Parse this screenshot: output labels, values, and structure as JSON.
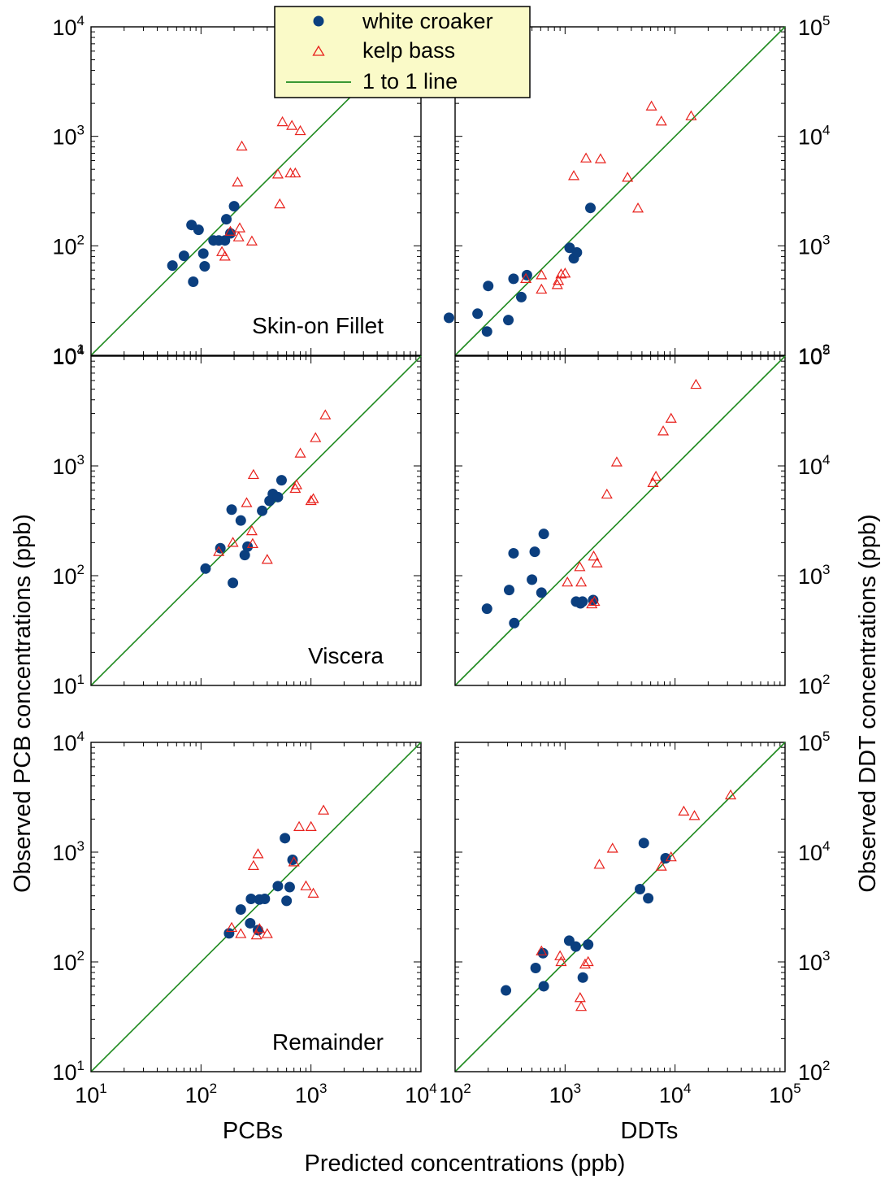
{
  "figure": {
    "x_label_main": "Predicted concentrations (ppb)",
    "x_label_left": "PCBs",
    "x_label_right": "DDTs",
    "y_label_left": "Observed PCB concentrations (ppb)",
    "y_label_right": "Observed DDT concentrations (ppb)",
    "legend": [
      {
        "label": "white croaker",
        "marker": "filled-circle",
        "color": "#0b3f7f"
      },
      {
        "label": "kelp bass",
        "marker": "open-triangle",
        "color": "#e8211c"
      },
      {
        "label": "1 to 1 line",
        "marker": "line",
        "color": "#1f8a1f"
      }
    ],
    "colors": {
      "white_croaker": "#0b3f7f",
      "kelp_bass": "#e8211c",
      "one_to_one": "#1f8a1f",
      "legend_background": "#fafac8"
    }
  },
  "chart_data": [
    {
      "type": "scatter",
      "panel": "pcb-skin-on-fillet",
      "label": "Skin-on Fillet",
      "x_scale": "log",
      "y_scale": "log",
      "xlim": [
        10,
        10000
      ],
      "ylim": [
        10,
        10000
      ],
      "x_ticks": [
        "10^1",
        "10^2",
        "10^3",
        "10^4"
      ],
      "y_ticks": [
        "10^1",
        "10^2",
        "10^3",
        "10^4"
      ],
      "x_tick_labels_visible": false,
      "series": [
        {
          "name": "white croaker",
          "points": [
            [
              55,
              66
            ],
            [
              70,
              81
            ],
            [
              85,
              47
            ],
            [
              82,
              155
            ],
            [
              95,
              140
            ],
            [
              105,
              85
            ],
            [
              108,
              65
            ],
            [
              130,
              112
            ],
            [
              145,
              112
            ],
            [
              165,
              112
            ],
            [
              170,
              175
            ],
            [
              185,
              130
            ],
            [
              200,
              230
            ]
          ]
        },
        {
          "name": "kelp bass",
          "points": [
            [
              155,
              88
            ],
            [
              165,
              80
            ],
            [
              185,
              135
            ],
            [
              215,
              380
            ],
            [
              220,
              120
            ],
            [
              225,
              145
            ],
            [
              235,
              810
            ],
            [
              290,
              110
            ],
            [
              500,
              450
            ],
            [
              520,
              240
            ],
            [
              550,
              1350
            ],
            [
              650,
              460
            ],
            [
              670,
              1250
            ],
            [
              720,
              460
            ],
            [
              800,
              1120
            ]
          ]
        }
      ]
    },
    {
      "type": "scatter",
      "panel": "ddt-skin-on-fillet",
      "x_scale": "log",
      "y_scale": "log",
      "xlim": [
        100,
        100000
      ],
      "ylim": [
        100,
        100000
      ],
      "x_ticks": [
        "10^2",
        "10^3",
        "10^4",
        "10^5"
      ],
      "y_ticks": [
        "10^2",
        "10^3",
        "10^4",
        "10^5"
      ],
      "x_tick_labels_visible": false,
      "series": [
        {
          "name": "white croaker",
          "points": [
            [
              88,
              220
            ],
            [
              160,
              240
            ],
            [
              195,
              165
            ],
            [
              200,
              430
            ],
            [
              305,
              210
            ],
            [
              340,
              500
            ],
            [
              400,
              340
            ],
            [
              450,
              540
            ],
            [
              1100,
              960
            ],
            [
              1200,
              770
            ],
            [
              1280,
              870
            ],
            [
              1700,
              2220
            ]
          ]
        },
        {
          "name": "kelp bass",
          "points": [
            [
              440,
              500
            ],
            [
              610,
              540
            ],
            [
              610,
              400
            ],
            [
              850,
              440
            ],
            [
              870,
              480
            ],
            [
              920,
              550
            ],
            [
              1000,
              560
            ],
            [
              1200,
              4350
            ],
            [
              1550,
              6300
            ],
            [
              2100,
              6200
            ],
            [
              3700,
              4200
            ],
            [
              4600,
              2200
            ],
            [
              6100,
              18800
            ],
            [
              7500,
              13700
            ],
            [
              14000,
              15300
            ]
          ]
        }
      ]
    },
    {
      "type": "scatter",
      "panel": "pcb-viscera",
      "label": "Viscera",
      "x_scale": "log",
      "y_scale": "log",
      "xlim": [
        10,
        10000
      ],
      "ylim": [
        10,
        10000
      ],
      "x_ticks": [
        "10^1",
        "10^2",
        "10^3",
        "10^4"
      ],
      "y_ticks": [
        "10^1",
        "10^2",
        "10^3",
        "10^4"
      ],
      "x_tick_labels_visible": false,
      "series": [
        {
          "name": "white croaker",
          "points": [
            [
              110,
              116
            ],
            [
              150,
              178
            ],
            [
              190,
              400
            ],
            [
              195,
              86
            ],
            [
              230,
              318
            ],
            [
              250,
              154
            ],
            [
              265,
              184
            ],
            [
              360,
              390
            ],
            [
              420,
              480
            ],
            [
              450,
              555
            ],
            [
              500,
              520
            ],
            [
              540,
              740
            ]
          ]
        },
        {
          "name": "kelp bass",
          "points": [
            [
              145,
              165
            ],
            [
              195,
              200
            ],
            [
              260,
              460
            ],
            [
              290,
              255
            ],
            [
              295,
              195
            ],
            [
              300,
              830
            ],
            [
              400,
              140
            ],
            [
              720,
              620
            ],
            [
              740,
              670
            ],
            [
              800,
              1300
            ],
            [
              1000,
              480
            ],
            [
              1050,
              500
            ],
            [
              1100,
              1800
            ],
            [
              1350,
              2900
            ]
          ]
        }
      ]
    },
    {
      "type": "scatter",
      "panel": "ddt-viscera",
      "x_scale": "log",
      "y_scale": "log",
      "xlim": [
        100,
        100000
      ],
      "ylim": [
        100,
        100000
      ],
      "x_ticks": [
        "10^2",
        "10^3",
        "10^4",
        "10^5"
      ],
      "y_ticks": [
        "10^2",
        "10^3",
        "10^4",
        "10^5"
      ],
      "x_tick_labels_visible": false,
      "series": [
        {
          "name": "white croaker",
          "points": [
            [
              195,
              500
            ],
            [
              310,
              740
            ],
            [
              340,
              1600
            ],
            [
              345,
              370
            ],
            [
              500,
              920
            ],
            [
              530,
              1650
            ],
            [
              610,
              700
            ],
            [
              640,
              2400
            ],
            [
              1260,
              580
            ],
            [
              1380,
              560
            ],
            [
              1440,
              580
            ],
            [
              1800,
              600
            ]
          ]
        },
        {
          "name": "kelp bass",
          "points": [
            [
              1050,
              870
            ],
            [
              1360,
              1200
            ],
            [
              1400,
              870
            ],
            [
              1750,
              550
            ],
            [
              1820,
              1500
            ],
            [
              1850,
              580
            ],
            [
              1950,
              1300
            ],
            [
              2400,
              5500
            ],
            [
              2950,
              10800
            ],
            [
              6300,
              7000
            ],
            [
              6700,
              8000
            ],
            [
              7800,
              20700
            ],
            [
              9200,
              27000
            ],
            [
              15500,
              55000
            ]
          ]
        }
      ]
    },
    {
      "type": "scatter",
      "panel": "pcb-remainder",
      "label": "Remainder",
      "x_scale": "log",
      "y_scale": "log",
      "xlim": [
        10,
        10000
      ],
      "ylim": [
        10,
        10000
      ],
      "x_ticks": [
        "10^1",
        "10^2",
        "10^3",
        "10^4"
      ],
      "y_ticks": [
        "10^1",
        "10^2",
        "10^3",
        "10^4"
      ],
      "x_tick_labels_visible": true,
      "series": [
        {
          "name": "white croaker",
          "points": [
            [
              180,
              182
            ],
            [
              230,
              300
            ],
            [
              280,
              225
            ],
            [
              285,
              375
            ],
            [
              330,
              195
            ],
            [
              340,
              370
            ],
            [
              380,
              375
            ],
            [
              500,
              490
            ],
            [
              580,
              1340
            ],
            [
              600,
              360
            ],
            [
              640,
              480
            ],
            [
              680,
              850
            ]
          ]
        },
        {
          "name": "kelp bass",
          "points": [
            [
              190,
              205
            ],
            [
              230,
              180
            ],
            [
              300,
              750
            ],
            [
              320,
              175
            ],
            [
              330,
              960
            ],
            [
              340,
              200
            ],
            [
              400,
              180
            ],
            [
              700,
              810
            ],
            [
              780,
              1700
            ],
            [
              900,
              490
            ],
            [
              1050,
              420
            ],
            [
              1000,
              1700
            ],
            [
              1300,
              2400
            ]
          ]
        }
      ]
    },
    {
      "type": "scatter",
      "panel": "ddt-remainder",
      "x_scale": "log",
      "y_scale": "log",
      "xlim": [
        100,
        100000
      ],
      "ylim": [
        100,
        100000
      ],
      "x_ticks": [
        "10^2",
        "10^3",
        "10^4",
        "10^5"
      ],
      "y_ticks": [
        "10^2",
        "10^3",
        "10^4",
        "10^5"
      ],
      "x_tick_labels_visible": true,
      "series": [
        {
          "name": "white croaker",
          "points": [
            [
              290,
              550
            ],
            [
              540,
              880
            ],
            [
              630,
              1200
            ],
            [
              640,
              600
            ],
            [
              1090,
              1560
            ],
            [
              1250,
              1380
            ],
            [
              1450,
              720
            ],
            [
              1620,
              1440
            ],
            [
              4800,
              4600
            ],
            [
              5200,
              12100
            ],
            [
              5700,
              3800
            ],
            [
              8200,
              8800
            ]
          ]
        },
        {
          "name": "kelp bass",
          "points": [
            [
              610,
              1250
            ],
            [
              900,
              1130
            ],
            [
              920,
              1000
            ],
            [
              1370,
              470
            ],
            [
              1400,
              390
            ],
            [
              1520,
              950
            ],
            [
              1620,
              1000
            ],
            [
              2050,
              7700
            ],
            [
              2700,
              10800
            ],
            [
              7500,
              7400
            ],
            [
              9200,
              9000
            ],
            [
              12000,
              23500
            ],
            [
              15000,
              21400
            ],
            [
              32000,
              33000
            ]
          ]
        }
      ]
    }
  ]
}
